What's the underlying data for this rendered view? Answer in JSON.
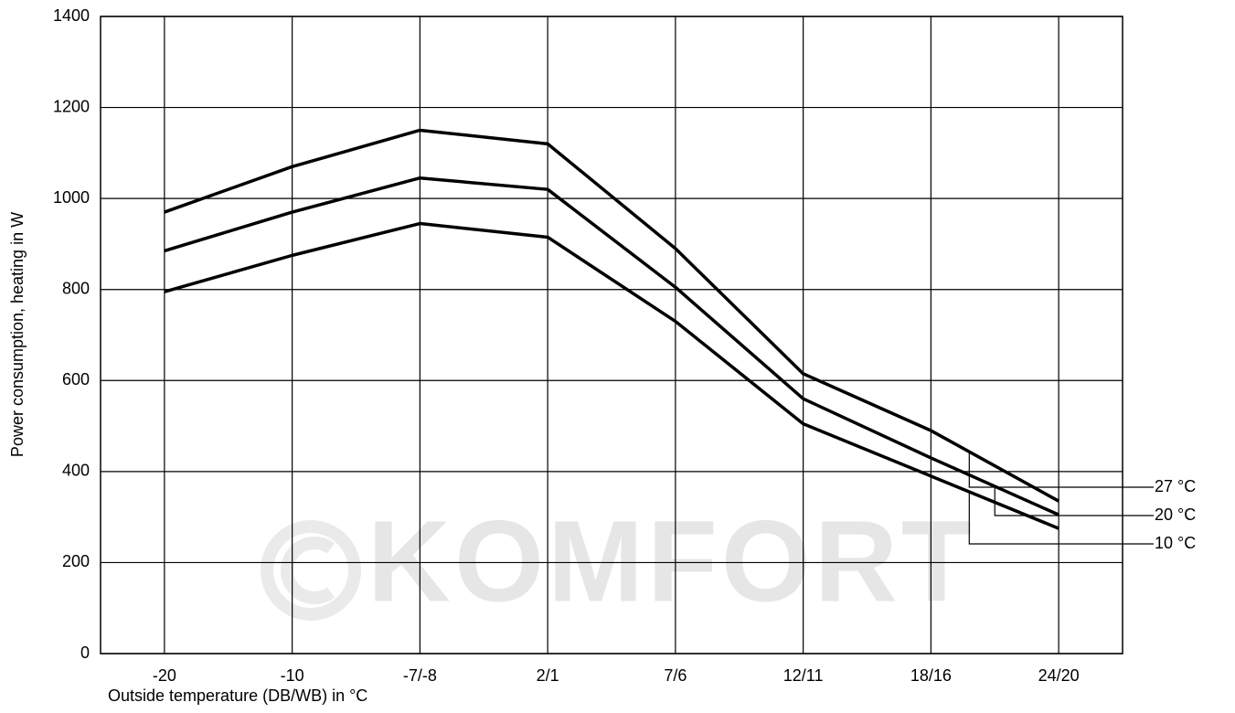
{
  "chart_data": {
    "type": "line",
    "xlabel": "Outside temperature (DB/WB) in °C",
    "ylabel": "Power consumption, heating in W",
    "watermark": "KOMFORT",
    "categories": [
      "-20",
      "-10",
      "-7/-8",
      "2/1",
      "7/6",
      "12/11",
      "18/16",
      "24/20"
    ],
    "series": [
      {
        "name": "27 °C",
        "color": "#000000",
        "values": [
          970,
          1070,
          1150,
          1120,
          890,
          615,
          490,
          335
        ]
      },
      {
        "name": "20 °C",
        "color": "#000000",
        "values": [
          885,
          970,
          1045,
          1020,
          805,
          560,
          430,
          305
        ]
      },
      {
        "name": "10 °C",
        "color": "#000000",
        "values": [
          795,
          875,
          945,
          915,
          730,
          505,
          390,
          275
        ]
      }
    ],
    "ylim": [
      0,
      1400
    ],
    "yticks": [
      0,
      200,
      400,
      600,
      800,
      1000,
      1200,
      1400
    ],
    "grid": true
  }
}
